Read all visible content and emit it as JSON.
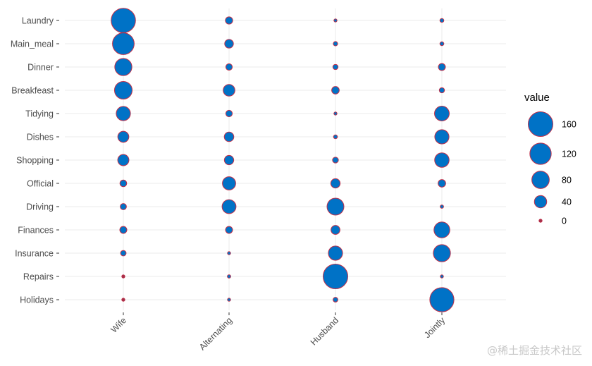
{
  "chart_data": {
    "type": "scatter",
    "subtype": "balloon",
    "title": "",
    "xlabel": "",
    "ylabel": "",
    "x_categories": [
      "Wife",
      "Alternating",
      "Husband",
      "Jointly"
    ],
    "y_categories": [
      "Laundry",
      "Main_meal",
      "Dinner",
      "Breakfeast",
      "Tidying",
      "Dishes",
      "Shopping",
      "Official",
      "Driving",
      "Finances",
      "Insurance",
      "Repairs",
      "Holidays"
    ],
    "values": [
      [
        156,
        14,
        2,
        4
      ],
      [
        124,
        20,
        5,
        4
      ],
      [
        77,
        11,
        7,
        13
      ],
      [
        82,
        36,
        15,
        7
      ],
      [
        53,
        11,
        1,
        57
      ],
      [
        32,
        24,
        4,
        53
      ],
      [
        33,
        23,
        9,
        55
      ],
      [
        12,
        46,
        23,
        15
      ],
      [
        10,
        51,
        75,
        3
      ],
      [
        13,
        13,
        21,
        66
      ],
      [
        8,
        1,
        53,
        77
      ],
      [
        0,
        3,
        160,
        2
      ],
      [
        0,
        1,
        6,
        153
      ]
    ],
    "legend": {
      "title": "value",
      "position": "right",
      "breaks": [
        160,
        120,
        80,
        40,
        0
      ]
    },
    "colors": {
      "fill": "#0072c6",
      "stroke": "#c0304a",
      "zero_fill": "#a0304a"
    }
  },
  "watermark": "@稀土掘金技术社区"
}
